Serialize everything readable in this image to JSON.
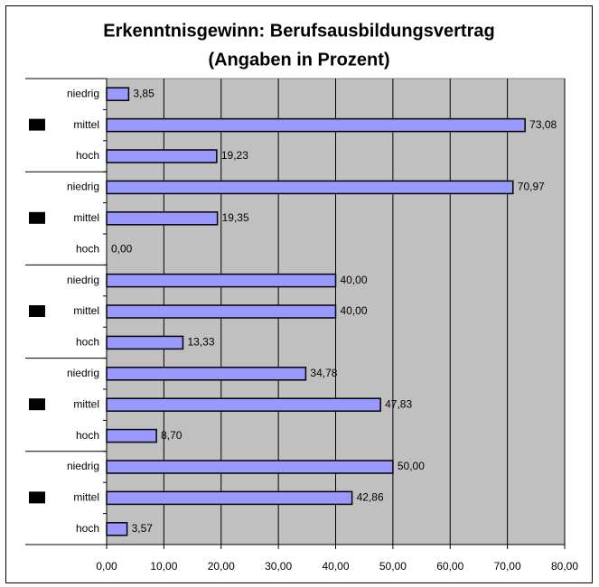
{
  "chart_data": {
    "type": "bar",
    "orientation": "horizontal",
    "title": [
      "Erkenntnisgewinn: Berufsausbildungsvertrag",
      "(Angaben in Prozent)"
    ],
    "categories": [
      "niedrig",
      "mittel",
      "hoch",
      "niedrig",
      "mittel",
      "hoch",
      "niedrig",
      "mittel",
      "hoch",
      "niedrig",
      "mittel",
      "hoch",
      "niedrig",
      "mittel",
      "hoch"
    ],
    "values": [
      3.85,
      73.08,
      19.23,
      70.97,
      19.35,
      0,
      40,
      40,
      13.33,
      34.78,
      47.83,
      8.7,
      50,
      42.86,
      3.57
    ],
    "value_labels": [
      "3,85",
      "73,08",
      "19,23",
      "70,97",
      "19,35",
      "0,00",
      "40,00",
      "40,00",
      "13,33",
      "34,78",
      "47,83",
      "8,70",
      "50,00",
      "42,86",
      "3,57"
    ],
    "color": "#9999ff",
    "xlim": [
      0,
      80
    ],
    "xticks": [
      {
        "value": 0,
        "label": "0,00"
      },
      {
        "value": 10,
        "label": "10,00"
      },
      {
        "value": 20,
        "label": "20,00"
      },
      {
        "value": 30,
        "label": "30,00"
      },
      {
        "value": 40,
        "label": "40,00"
      },
      {
        "value": 50,
        "label": "50,00"
      },
      {
        "value": 60,
        "label": "60,00"
      },
      {
        "value": 70,
        "label": "70,00"
      },
      {
        "value": 80,
        "label": "80,00"
      }
    ],
    "grid": true
  }
}
